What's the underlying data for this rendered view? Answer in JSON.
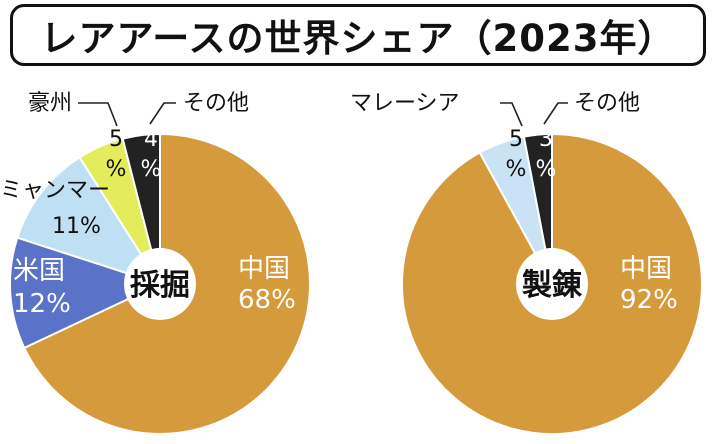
{
  "title": "レアアースの世界シェア（2023年）",
  "colors": {
    "china": "#d49a3c",
    "myanmar": "#bfe0f4",
    "australia": "#e3ec5a",
    "usa": "#5a72c8",
    "malaysia": "#c9e3f5",
    "other": "#222222",
    "stroke": "#ffffff",
    "leader": "#222222"
  },
  "chart_data": [
    {
      "type": "pie",
      "center_label": "採掘",
      "slices": [
        {
          "name": "中国",
          "value": 68,
          "pct_label": "68%",
          "color_key": "china",
          "label_style": "inside-white"
        },
        {
          "name": "米国",
          "value": 12,
          "pct_label": "12%",
          "color_key": "usa",
          "label_style": "inside-white"
        },
        {
          "name": "ミャンマー",
          "value": 11,
          "pct_label": "11%",
          "color_key": "myanmar",
          "label_style": "inside-dark"
        },
        {
          "name": "豪州",
          "value": 5,
          "pct_label": "5%",
          "color_key": "australia",
          "label_style": "outside-leader"
        },
        {
          "name": "その他",
          "value": 4,
          "pct_label": "4%",
          "color_key": "other",
          "label_style": "outside-leader"
        }
      ]
    },
    {
      "type": "pie",
      "center_label": "製錬",
      "slices": [
        {
          "name": "中国",
          "value": 92,
          "pct_label": "92%",
          "color_key": "china",
          "label_style": "inside-white"
        },
        {
          "name": "マレーシア",
          "value": 5,
          "pct_label": "5%",
          "color_key": "malaysia",
          "label_style": "outside-leader"
        },
        {
          "name": "その他",
          "value": 3,
          "pct_label": "3%",
          "color_key": "other",
          "label_style": "outside-leader"
        }
      ]
    }
  ]
}
